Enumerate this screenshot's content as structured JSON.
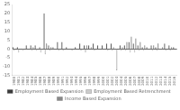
{
  "chart_data": {
    "type": "bar",
    "categories": [
      1980,
      1981,
      1982,
      1983,
      1984,
      1985,
      1986,
      1987,
      1988,
      1989,
      1990,
      1991,
      1992,
      1993,
      1994,
      1995,
      1996,
      1997,
      1998,
      1999,
      2000,
      2001,
      2002,
      2003,
      2004,
      2005,
      2006,
      2007,
      2008,
      2009,
      2010,
      2011,
      2012,
      2013,
      2014,
      2015,
      2016
    ],
    "series": [
      {
        "name": "Employment Based Expansion",
        "color": "#3a3a3a",
        "values": [
          1,
          1,
          0,
          2,
          2,
          2,
          1,
          20,
          2,
          1,
          4,
          4,
          1,
          0,
          1,
          3,
          2,
          2,
          3,
          2,
          2,
          3,
          3,
          0,
          2,
          2,
          4,
          3,
          2,
          1,
          1,
          2,
          1,
          0,
          3,
          2,
          1
        ]
      },
      {
        "name": "Employment Based Retrenchment",
        "color": "#cccccc",
        "values": [
          -1,
          -2,
          -1,
          0,
          -1,
          -1,
          -2,
          -3,
          -1,
          0,
          -1,
          -1,
          0,
          -1,
          0,
          -1,
          -2,
          0,
          -1,
          0,
          0,
          -1,
          -1,
          -12,
          -1,
          -1,
          -2,
          -2,
          -1,
          -1,
          0,
          -1,
          -1,
          0,
          -1,
          -1,
          0
        ]
      },
      {
        "name": "Income Based Expansion",
        "color": "#888888",
        "values": [
          0,
          0,
          0,
          0,
          1,
          0,
          0,
          3,
          1,
          0,
          0,
          0,
          0,
          0,
          0,
          0,
          2,
          1,
          0,
          0,
          0,
          0,
          1,
          0,
          1,
          4,
          7,
          6,
          4,
          2,
          0,
          2,
          3,
          1,
          0,
          1,
          0
        ]
      }
    ],
    "ylim": [
      -15,
      25
    ],
    "yticks": [
      -15,
      -10,
      -5,
      0,
      5,
      10,
      15,
      20,
      25
    ],
    "grid": false,
    "legend": "bottom"
  }
}
